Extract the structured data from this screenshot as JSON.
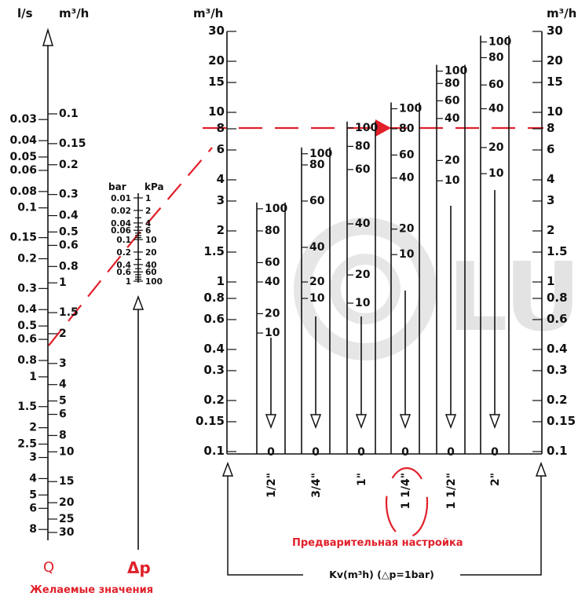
{
  "colors": {
    "accent": "#e0202a",
    "ink": "#111111",
    "watermark": "#d9d9d9"
  },
  "watermark": {
    "text": "LU"
  },
  "q_scale": {
    "ls_header": "l/s",
    "m3h_header": "m³/h",
    "ls_ticks": [
      "0.03",
      "0.04",
      "0.05",
      "0.06",
      "0.08",
      "0.1",
      "0.15",
      "0.2",
      "0.3",
      "0.4",
      "0.5",
      "0.6",
      "0.8",
      "1",
      "1.5",
      "2",
      "2.5",
      "3",
      "4",
      "5",
      "6",
      "8"
    ],
    "m3h_ticks": [
      "0.1",
      "0.15",
      "0.2",
      "0.3",
      "0.4",
      "0.5",
      "0.6",
      "0.8",
      "1",
      "1.5",
      "2",
      "3",
      "4",
      "5",
      "6",
      "8",
      "10",
      "15",
      "20",
      "25",
      "30"
    ]
  },
  "dp_scale": {
    "bar_header": "bar",
    "kpa_header": "kPa",
    "bar_ticks": [
      "0.01",
      "0.02",
      "0.04",
      "0.06",
      "0.1",
      "0.2",
      "0.4",
      "0.6",
      "1"
    ],
    "kpa_ticks": [
      "1",
      "2",
      "4",
      "6",
      "10",
      "20",
      "40",
      "60",
      "100"
    ]
  },
  "kv_axis": {
    "unit": "m³/h",
    "ticks": [
      "0.1",
      "0.15",
      "0.2",
      "0.3",
      "0.4",
      "0.6",
      "0.8",
      "1",
      "1.5",
      "2",
      "3",
      "4",
      "6",
      "8",
      "10",
      "15",
      "20",
      "30"
    ]
  },
  "valve_columns": [
    {
      "size": "1/2\"",
      "ticks": [
        "100",
        "80",
        "60",
        "40",
        "20",
        "10"
      ],
      "zero": "0"
    },
    {
      "size": "3/4\"",
      "ticks": [
        "100",
        "80",
        "60",
        "40",
        "20",
        "10"
      ],
      "zero": "0"
    },
    {
      "size": "1\"",
      "ticks": [
        "100",
        "80",
        "60",
        "40",
        "20",
        "10"
      ],
      "zero": "0"
    },
    {
      "size": "1 1/4\"",
      "ticks": [
        "100",
        "80",
        "60",
        "40",
        "20",
        "10"
      ],
      "zero": "0"
    },
    {
      "size": "1 1/2\"",
      "ticks": [
        "100",
        "80",
        "60",
        "40",
        "20",
        "10"
      ],
      "zero": "0"
    },
    {
      "size": "2\"",
      "ticks": [
        "100",
        "80",
        "60",
        "40",
        "20",
        "10"
      ],
      "zero": "0"
    }
  ],
  "labels": {
    "q_symbol": "Q",
    "dp_symbol": "Δp",
    "desired_values": "Желаемые значения",
    "presetting": "Предварительная настройка",
    "kv_caption": "Kv(m³h)  (△p=1bar)"
  }
}
